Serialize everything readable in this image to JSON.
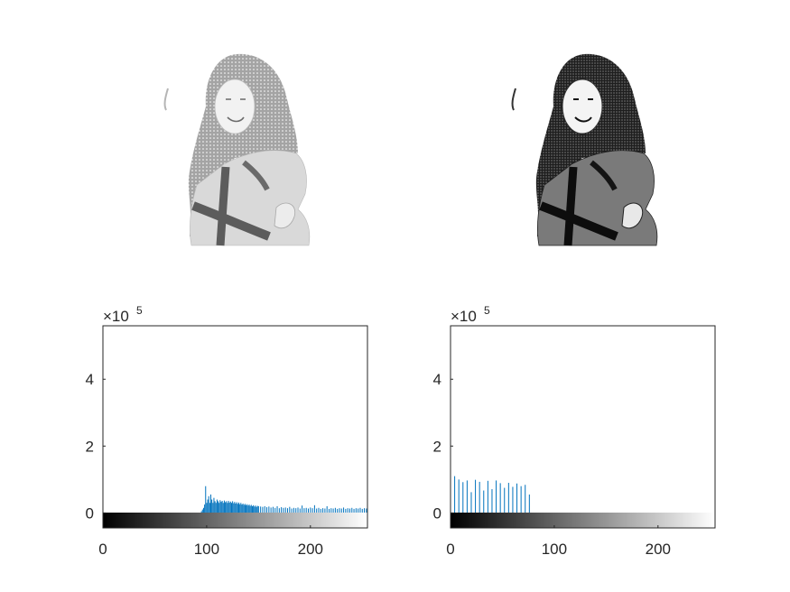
{
  "figure": {
    "background": "#ffffff",
    "line_color": "#0072BD",
    "axis_color": "#262626"
  },
  "images": [
    {
      "name": "photo-brightened",
      "tone": "light"
    },
    {
      "name": "photo-darkened",
      "tone": "dark"
    }
  ],
  "chart_data": [
    {
      "type": "bar",
      "x_range": [
        0,
        255
      ],
      "ylim": [
        -45000,
        560000
      ],
      "x_ticks": [
        0,
        100,
        200
      ],
      "x_tick_labels": [
        "0",
        "100",
        "200"
      ],
      "y_ticks": [
        0,
        200000,
        400000
      ],
      "y_tick_labels": [
        "0",
        "2",
        "4"
      ],
      "y_multiplier_base": "×10",
      "y_multiplier_exponent": "5",
      "colorbar": "grayscale 0-255",
      "x": [
        95,
        96,
        97,
        98,
        99,
        100,
        101,
        102,
        103,
        104,
        105,
        106,
        107,
        108,
        109,
        110,
        111,
        112,
        113,
        114,
        115,
        116,
        117,
        118,
        119,
        120,
        121,
        122,
        123,
        124,
        125,
        126,
        127,
        128,
        129,
        130,
        131,
        132,
        133,
        134,
        135,
        136,
        137,
        138,
        139,
        140,
        141,
        142,
        143,
        144,
        145,
        146,
        147,
        148,
        149,
        150,
        152,
        154,
        156,
        158,
        160,
        162,
        164,
        166,
        168,
        170,
        172,
        174,
        176,
        178,
        180,
        182,
        184,
        186,
        188,
        190,
        192,
        194,
        196,
        198,
        200,
        202,
        204,
        206,
        208,
        210,
        212,
        214,
        216,
        218,
        220,
        222,
        224,
        226,
        228,
        230,
        232,
        234,
        236,
        238,
        240,
        242,
        244,
        246,
        248,
        250,
        252,
        254,
        255
      ],
      "y": [
        5000,
        10000,
        15000,
        25000,
        80000,
        30000,
        40000,
        50000,
        30000,
        55000,
        40000,
        30000,
        45000,
        35000,
        30000,
        40000,
        35000,
        30000,
        38000,
        33000,
        36000,
        30000,
        37000,
        32000,
        35000,
        30000,
        36000,
        31000,
        34000,
        30000,
        35000,
        29000,
        33000,
        28000,
        32000,
        27000,
        31000,
        26000,
        30000,
        25000,
        28000,
        24000,
        27000,
        23000,
        26000,
        22000,
        25000,
        21000,
        24000,
        20000,
        23000,
        19000,
        22000,
        18000,
        21000,
        20000,
        19000,
        18000,
        20000,
        17000,
        19000,
        16000,
        18000,
        15000,
        20000,
        14000,
        17000,
        15000,
        16000,
        14000,
        18000,
        13000,
        15000,
        14000,
        16000,
        13000,
        22000,
        14000,
        15000,
        13000,
        16000,
        14000,
        23000,
        13000,
        15000,
        12000,
        14000,
        13000,
        20000,
        12000,
        14000,
        13000,
        15000,
        12000,
        14000,
        13000,
        16000,
        12000,
        14000,
        13000,
        15000,
        12000,
        14000,
        13000,
        15000,
        12000,
        14000,
        13000,
        560000
      ]
    },
    {
      "type": "bar",
      "x_range": [
        0,
        255
      ],
      "ylim": [
        -45000,
        560000
      ],
      "x_ticks": [
        0,
        100,
        200
      ],
      "x_tick_labels": [
        "0",
        "100",
        "200"
      ],
      "y_ticks": [
        0,
        200000,
        400000
      ],
      "y_tick_labels": [
        "0",
        "2",
        "4"
      ],
      "y_multiplier_base": "×10",
      "y_multiplier_exponent": "5",
      "colorbar": "grayscale 0-255",
      "x": [
        0,
        4,
        8,
        12,
        16,
        20,
        24,
        28,
        32,
        36,
        40,
        44,
        48,
        52,
        56,
        60,
        64,
        68,
        72,
        76,
        255
      ],
      "y": [
        48000,
        110000,
        100000,
        92000,
        97000,
        62000,
        99000,
        93000,
        67000,
        96000,
        71000,
        97000,
        89000,
        75000,
        90000,
        78000,
        88000,
        80000,
        84000,
        55000,
        560000
      ]
    }
  ]
}
